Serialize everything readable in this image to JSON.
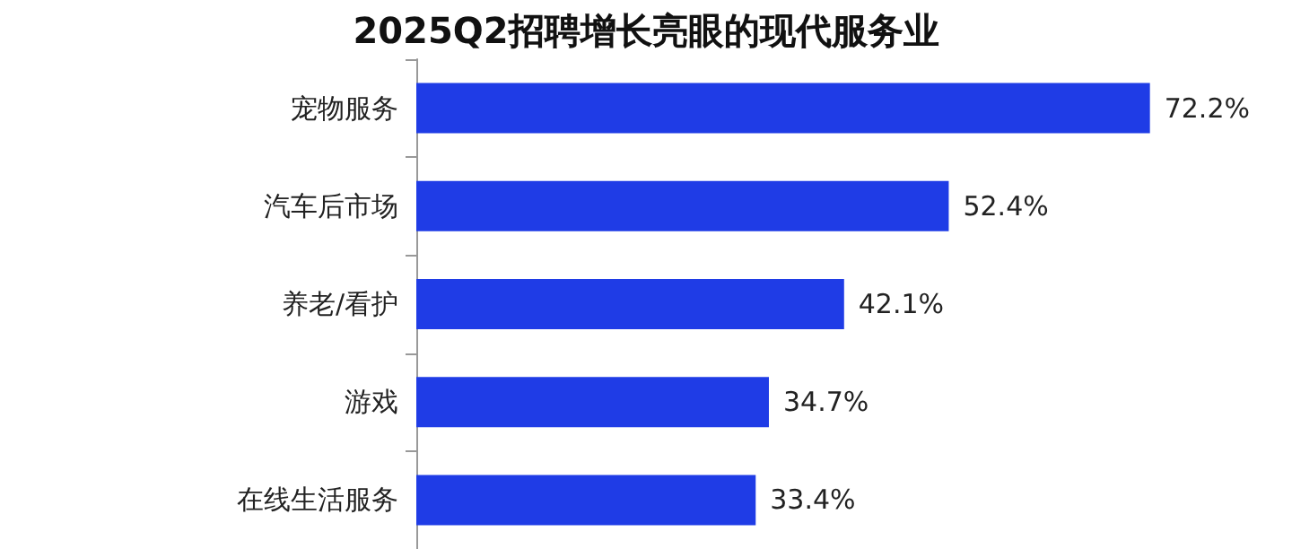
{
  "chart_data": {
    "type": "bar",
    "orientation": "horizontal",
    "title": "2025Q2招聘增长亮眼的现代服务业",
    "categories": [
      "宠物服务",
      "汽车后市场",
      "养老/看护",
      "游戏",
      "在线生活服务"
    ],
    "values": [
      72.2,
      52.4,
      42.1,
      34.7,
      33.4
    ],
    "value_labels": [
      "72.2%",
      "52.4%",
      "42.1%",
      "34.7%",
      "33.4%"
    ],
    "color": "#1f3ce6"
  }
}
